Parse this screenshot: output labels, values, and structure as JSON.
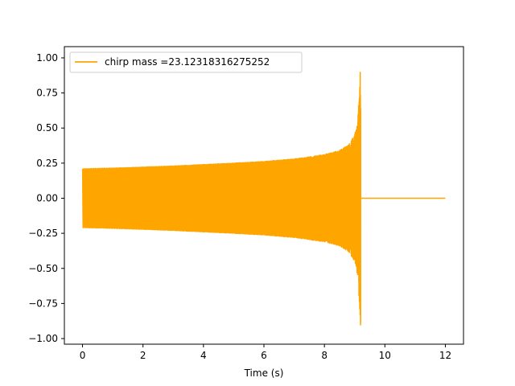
{
  "chart_data": {
    "type": "line",
    "title": "",
    "xlabel": "Time (s)",
    "ylabel": "",
    "xlim": [
      -0.6,
      12.6
    ],
    "ylim": [
      -1.04,
      1.08
    ],
    "x_ticks": [
      0,
      2,
      4,
      6,
      8,
      10,
      12
    ],
    "y_ticks": [
      -1.0,
      -0.75,
      -0.5,
      -0.25,
      0.0,
      0.25,
      0.5,
      0.75,
      1.0
    ],
    "x_tick_labels": [
      "0",
      "2",
      "4",
      "6",
      "8",
      "10",
      "12"
    ],
    "y_tick_labels": [
      "−1.00",
      "−0.75",
      "−0.50",
      "−0.25",
      "0.00",
      "0.25",
      "0.50",
      "0.75",
      "1.00"
    ],
    "grid": false,
    "legend_position": "top-left",
    "series": [
      {
        "name": "chirp mass =23.12318316275252",
        "color": "#ffa500",
        "envelope": {
          "x": [
            0,
            1,
            2,
            3,
            4,
            5,
            6,
            7,
            8,
            8.5,
            8.8,
            9.0,
            9.1,
            9.17,
            9.2
          ],
          "upper": [
            0.21,
            0.215,
            0.222,
            0.23,
            0.24,
            0.25,
            0.262,
            0.28,
            0.31,
            0.34,
            0.38,
            0.45,
            0.55,
            0.8,
            1.0
          ],
          "lower": [
            -0.21,
            -0.215,
            -0.222,
            -0.23,
            -0.24,
            -0.25,
            -0.262,
            -0.28,
            -0.31,
            -0.34,
            -0.38,
            -0.45,
            -0.55,
            -0.8,
            -0.93
          ]
        },
        "flat": {
          "x": [
            9.2,
            12
          ],
          "y": [
            0,
            0
          ]
        }
      }
    ]
  }
}
